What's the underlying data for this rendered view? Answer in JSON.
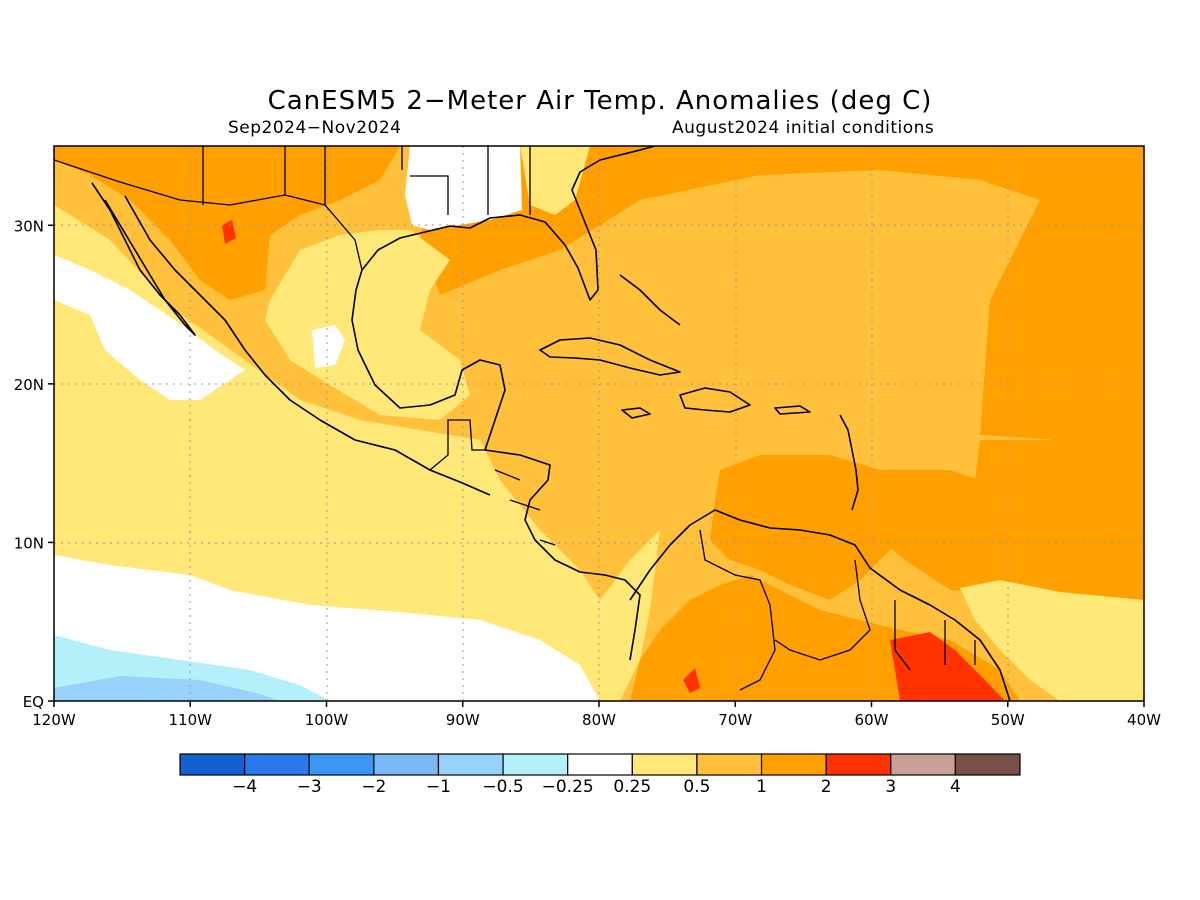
{
  "title": "CanESM5 2−Meter Air Temp. Anomalies (deg C)",
  "period": "Sep2024−Nov2024",
  "init": "August2024 initial conditions",
  "map": {
    "lon_range": [
      -120,
      -40
    ],
    "lat_range": [
      0,
      35
    ],
    "x_ticks": [
      {
        "lon": -120,
        "label": "120W"
      },
      {
        "lon": -110,
        "label": "110W"
      },
      {
        "lon": -100,
        "label": "100W"
      },
      {
        "lon": -90,
        "label": "90W"
      },
      {
        "lon": -80,
        "label": "80W"
      },
      {
        "lon": -70,
        "label": "70W"
      },
      {
        "lon": -60,
        "label": "60W"
      },
      {
        "lon": -50,
        "label": "50W"
      },
      {
        "lon": -40,
        "label": "40W"
      }
    ],
    "y_ticks": [
      {
        "lat": 0,
        "label": "EQ"
      },
      {
        "lat": 10,
        "label": "10N"
      },
      {
        "lat": 20,
        "label": "20N"
      },
      {
        "lat": 30,
        "label": "30N"
      }
    ],
    "gridlines": true
  },
  "colorbar": {
    "colors": [
      "#1560d0",
      "#2a78ee",
      "#3c96f5",
      "#78b8f5",
      "#96d2fa",
      "#b4f0fa",
      "#ffffff",
      "#ffe878",
      "#ffc03c",
      "#ffa000",
      "#ff3200",
      "#c8a096",
      "#785046"
    ],
    "labels": [
      "−4",
      "−3",
      "−2",
      "−1",
      "−0.5",
      "−0.25",
      "0.25",
      "0.5",
      "1",
      "2",
      "3",
      "4"
    ]
  }
}
